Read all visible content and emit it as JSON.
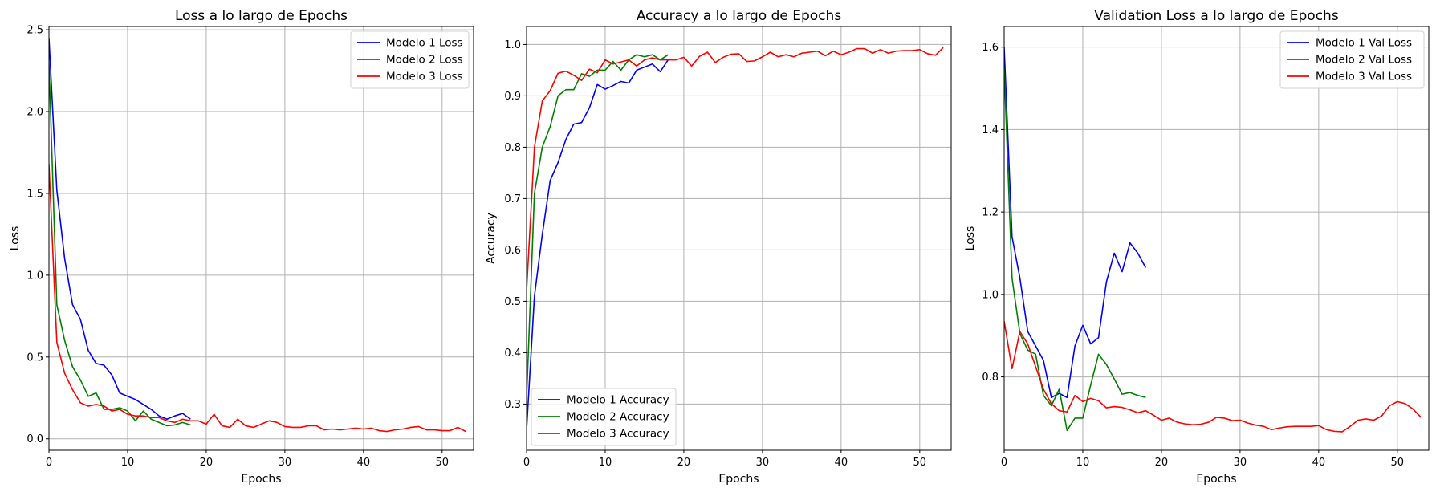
{
  "chart_data": [
    {
      "type": "line",
      "title": "Loss a lo largo de Epochs",
      "xlabel": "Epochs",
      "ylabel": "Loss",
      "xlim": [
        0,
        54
      ],
      "ylim": [
        -0.07,
        2.52
      ],
      "xticks": [
        0,
        10,
        20,
        30,
        40,
        50
      ],
      "yticks": [
        0.0,
        0.5,
        1.0,
        1.5,
        2.0,
        2.5
      ],
      "ytick_decimals": 1,
      "grid": true,
      "legend": "top-right",
      "series": [
        {
          "name": "Modelo 1 Loss",
          "color": "#0000ff",
          "values": [
            2.45,
            1.52,
            1.1,
            0.82,
            0.73,
            0.54,
            0.46,
            0.45,
            0.39,
            0.28,
            0.26,
            0.24,
            0.21,
            0.18,
            0.14,
            0.12,
            0.14,
            0.155,
            0.12
          ]
        },
        {
          "name": "Modelo 2 Loss",
          "color": "#008000",
          "values": [
            2.3,
            0.82,
            0.6,
            0.44,
            0.36,
            0.26,
            0.28,
            0.18,
            0.18,
            0.19,
            0.17,
            0.11,
            0.17,
            0.12,
            0.1,
            0.08,
            0.085,
            0.1,
            0.085
          ]
        },
        {
          "name": "Modelo 3 Loss",
          "color": "#ff0000",
          "values": [
            1.68,
            0.59,
            0.4,
            0.3,
            0.22,
            0.2,
            0.21,
            0.2,
            0.17,
            0.18,
            0.15,
            0.14,
            0.14,
            0.13,
            0.13,
            0.11,
            0.1,
            0.12,
            0.11,
            0.11,
            0.09,
            0.15,
            0.08,
            0.07,
            0.12,
            0.08,
            0.07,
            0.09,
            0.11,
            0.1,
            0.075,
            0.07,
            0.07,
            0.08,
            0.08,
            0.055,
            0.06,
            0.055,
            0.06,
            0.065,
            0.06,
            0.065,
            0.05,
            0.045,
            0.055,
            0.06,
            0.07,
            0.075,
            0.055,
            0.055,
            0.05,
            0.05,
            0.07,
            0.045
          ]
        }
      ]
    },
    {
      "type": "line",
      "title": "Accuracy a lo largo de Epochs",
      "xlabel": "Epochs",
      "ylabel": "Accuracy",
      "xlim": [
        0,
        54
      ],
      "ylim": [
        0.21,
        1.035
      ],
      "xticks": [
        0,
        10,
        20,
        30,
        40,
        50
      ],
      "yticks": [
        0.3,
        0.4,
        0.5,
        0.6,
        0.7,
        0.8,
        0.9,
        1.0
      ],
      "ytick_decimals": 1,
      "grid": true,
      "legend": "bottom-left",
      "series": [
        {
          "name": "Modelo 1 Accuracy",
          "color": "#0000ff",
          "values": [
            0.25,
            0.51,
            0.63,
            0.735,
            0.77,
            0.815,
            0.845,
            0.848,
            0.877,
            0.922,
            0.913,
            0.92,
            0.928,
            0.925,
            0.95,
            0.956,
            0.962,
            0.947,
            0.97
          ]
        },
        {
          "name": "Modelo 2 Accuracy",
          "color": "#008000",
          "values": [
            0.31,
            0.71,
            0.8,
            0.84,
            0.9,
            0.912,
            0.912,
            0.943,
            0.938,
            0.95,
            0.95,
            0.967,
            0.95,
            0.97,
            0.98,
            0.976,
            0.98,
            0.97,
            0.98
          ]
        },
        {
          "name": "Modelo 3 Accuracy",
          "color": "#ff0000",
          "values": [
            0.52,
            0.8,
            0.89,
            0.91,
            0.944,
            0.948,
            0.94,
            0.93,
            0.952,
            0.945,
            0.97,
            0.962,
            0.966,
            0.97,
            0.958,
            0.97,
            0.974,
            0.97,
            0.97,
            0.97,
            0.975,
            0.958,
            0.977,
            0.985,
            0.965,
            0.975,
            0.981,
            0.982,
            0.967,
            0.968,
            0.976,
            0.985,
            0.976,
            0.98,
            0.976,
            0.983,
            0.985,
            0.987,
            0.978,
            0.987,
            0.98,
            0.985,
            0.992,
            0.992,
            0.983,
            0.99,
            0.983,
            0.987,
            0.988,
            0.988,
            0.99,
            0.982,
            0.979,
            0.994
          ]
        }
      ]
    },
    {
      "type": "line",
      "title": "Validation Loss a lo largo de Epochs",
      "xlabel": "Epochs",
      "ylabel": "Loss",
      "xlim": [
        0,
        54
      ],
      "ylim": [
        0.622,
        1.65
      ],
      "xticks": [
        0,
        10,
        20,
        30,
        40,
        50
      ],
      "yticks": [
        0.8,
        1.0,
        1.2,
        1.4,
        1.6
      ],
      "ytick_decimals": 1,
      "grid": true,
      "legend": "top-right",
      "series": [
        {
          "name": "Modelo 1 Val Loss",
          "color": "#0000ff",
          "values": [
            1.6,
            1.14,
            1.04,
            0.91,
            0.875,
            0.84,
            0.75,
            0.76,
            0.75,
            0.875,
            0.925,
            0.88,
            0.895,
            1.03,
            1.1,
            1.055,
            1.125,
            1.1,
            1.065
          ]
        },
        {
          "name": "Modelo 2 Val Loss",
          "color": "#008000",
          "values": [
            1.55,
            1.04,
            0.905,
            0.865,
            0.855,
            0.755,
            0.73,
            0.77,
            0.67,
            0.7,
            0.7,
            0.78,
            0.855,
            0.83,
            0.795,
            0.758,
            0.762,
            0.755,
            0.75
          ]
        },
        {
          "name": "Modelo 3 Val Loss",
          "color": "#ff0000",
          "values": [
            0.935,
            0.82,
            0.91,
            0.88,
            0.825,
            0.77,
            0.735,
            0.718,
            0.715,
            0.755,
            0.74,
            0.748,
            0.742,
            0.725,
            0.728,
            0.726,
            0.72,
            0.713,
            0.718,
            0.707,
            0.695,
            0.7,
            0.69,
            0.686,
            0.684,
            0.685,
            0.69,
            0.702,
            0.7,
            0.694,
            0.695,
            0.688,
            0.683,
            0.68,
            0.672,
            0.676,
            0.679,
            0.68,
            0.68,
            0.68,
            0.682,
            0.672,
            0.668,
            0.667,
            0.68,
            0.695,
            0.698,
            0.695,
            0.705,
            0.73,
            0.74,
            0.735,
            0.722,
            0.702
          ]
        }
      ]
    }
  ]
}
